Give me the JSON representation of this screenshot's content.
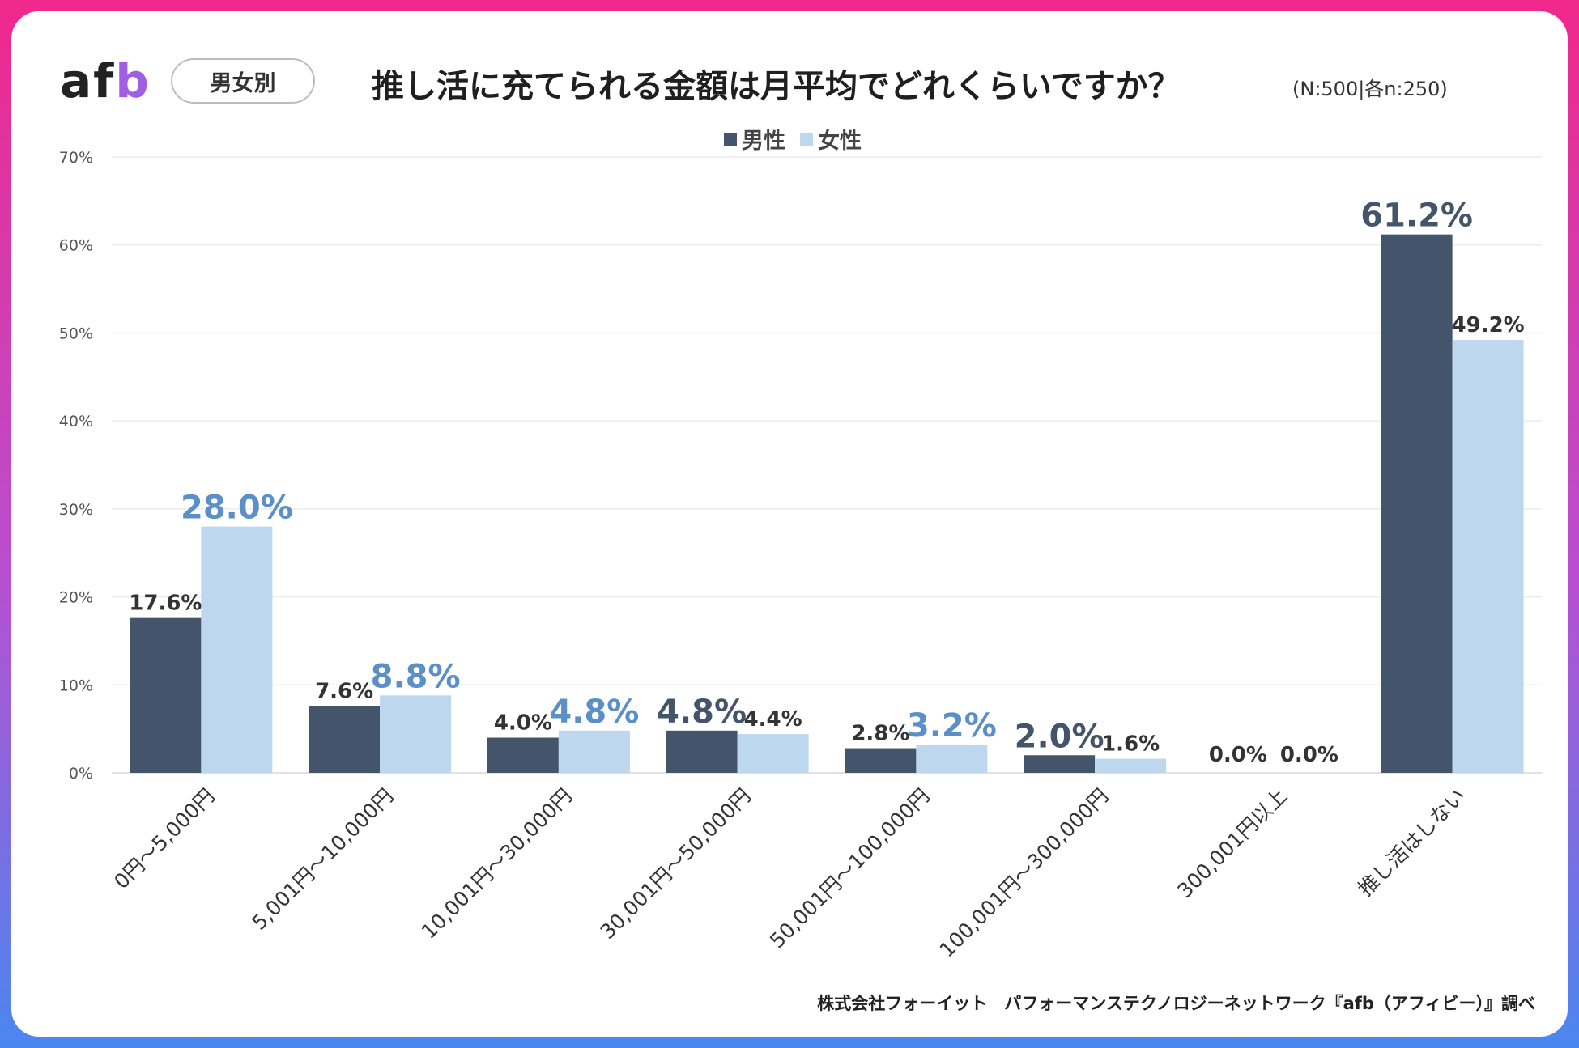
{
  "header": {
    "logo_main": "af",
    "logo_accent": "b",
    "tag": "男女別",
    "title": "推し活に充てられる金額は月平均でどれくらいですか？",
    "subtitle": "(N:500|各n:250)"
  },
  "colors": {
    "male": "#44546a",
    "female": "#bdd7ee",
    "highlight_female_label": "#5b8fc7",
    "highlight_male_label": "#44546a",
    "label_default": "#333333"
  },
  "chart_data": {
    "type": "bar",
    "categories": [
      "0円～5,000円",
      "5,001円～10,000円",
      "10,001円～30,000円",
      "30,001円～50,000円",
      "50,001円～100,000円",
      "100,001円～300,000円",
      "300,001円以上",
      "推し活はしない"
    ],
    "series": [
      {
        "name": "男性",
        "values": [
          17.6,
          7.6,
          4.0,
          4.8,
          2.8,
          2.0,
          0.0,
          61.2
        ],
        "labels": [
          "17.6%",
          "7.6%",
          "4.0%",
          "4.8%",
          "2.8%",
          "2.0%",
          "0.0%",
          "61.2%"
        ]
      },
      {
        "name": "女性",
        "values": [
          28.0,
          8.8,
          4.8,
          4.4,
          3.2,
          1.6,
          0.0,
          49.2
        ],
        "labels": [
          "28.0%",
          "8.8%",
          "4.8%",
          "4.4%",
          "3.2%",
          "1.6%",
          "0.0%",
          "49.2%"
        ]
      }
    ],
    "highlight": [
      "female",
      "female",
      "female",
      "male",
      "female",
      "male",
      "none",
      "male"
    ],
    "yticks": [
      "0%",
      "10%",
      "20%",
      "30%",
      "40%",
      "50%",
      "60%",
      "70%"
    ],
    "ylim": [
      0,
      70
    ],
    "legend": "top-center",
    "grid": true
  },
  "source": "株式会社フォーイット　パフォーマンステクノロジーネットワーク『afb（アフィビー）』調べ"
}
